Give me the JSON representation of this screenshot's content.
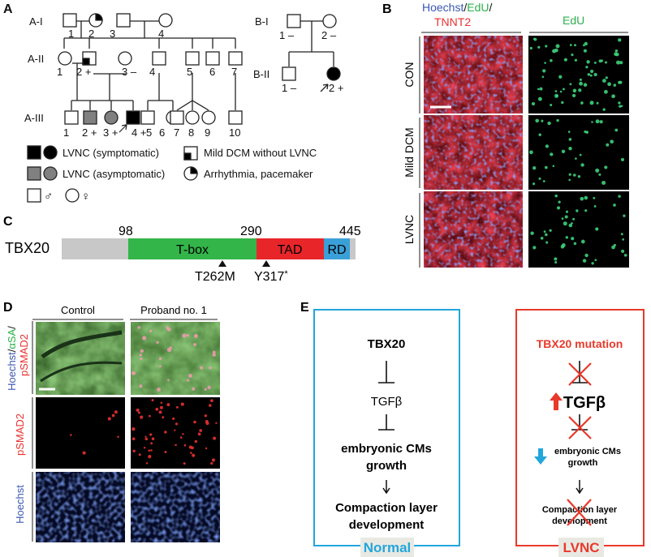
{
  "panels": {
    "a": "A",
    "b": "B",
    "c": "C",
    "d": "D",
    "e": "E"
  },
  "pedigree": {
    "gen_a_i": "A-I",
    "gen_a_ii": "A-II",
    "gen_a_iii": "A-III",
    "gen_b_i": "B-I",
    "gen_b_ii": "B-II",
    "a1": [
      "1",
      "2",
      "3",
      "4"
    ],
    "a2": [
      "1",
      "2 +",
      "3 –",
      "4",
      "5",
      "6",
      "7"
    ],
    "a3": [
      "1",
      "2 +",
      "3 +",
      "4 +",
      "5",
      "6",
      "7",
      "8",
      "9",
      "10"
    ],
    "b1": [
      "1 –",
      "2 –"
    ],
    "b2": [
      "1 –",
      "2 +"
    ]
  },
  "legend": {
    "lvnc_symptomatic": "LVNC (symptomatic)",
    "mild_dcm": "Mild DCM without LVNC",
    "lvnc_asymptomatic": "LVNC (asymptomatic)",
    "arrhythmia": "Arrhythmia, pacemaker",
    "male_symbol": "♂",
    "female_symbol": "♀"
  },
  "panel_b": {
    "header_hoechst": "Hoechst",
    "header_sep1": "/",
    "header_edu": "EdU",
    "header_sep2": "/",
    "header_tnnt2": "TNNT2",
    "header_col2": "EdU",
    "rows": [
      "CON",
      "Mild DCM",
      "LVNC"
    ]
  },
  "panel_c": {
    "protein": "TBX20",
    "pos_98": "98",
    "pos_290": "290",
    "pos_445": "445",
    "tbox": "T-box",
    "tad": "TAD",
    "rd": "RD",
    "mut1": "T262M",
    "mut2": "Y317",
    "mut2_sup": "*"
  },
  "panel_d": {
    "col1": "Control",
    "col2": "Proband no. 1",
    "row1_l1_hoechst": "Hoechst",
    "row1_l1_sep1": "/",
    "row1_l1_asa": "αSA",
    "row1_l1_sep2": "/",
    "row1_l2": "pSMAD2",
    "row2": "pSMAD2",
    "row3": "Hoechst"
  },
  "panel_e": {
    "normal": {
      "tbx20": "TBX20",
      "tgfb": "TGFβ",
      "cms1": "embryonic CMs",
      "cms2": "growth",
      "layer1": "Compaction layer",
      "layer2": "development",
      "label": "Normal"
    },
    "lvnc": {
      "title": "TBX20 mutation",
      "tgfb": "TGFβ",
      "cms1": "embryonic CMs",
      "cms2": "growth",
      "layer1": "Compaction layer",
      "layer2": "development",
      "label": "LVNC"
    }
  },
  "colors": {
    "affected_black": "#000000",
    "asymptomatic_gray": "#808080",
    "tbox_green": "#33b54a",
    "tad_red": "#e8262a",
    "rd_blue": "#3aa0d8",
    "hoechst_blue": "#3a57b3",
    "edu_green": "#2bb14b",
    "tnnt2_red": "#e8312f",
    "normal_box": "#22a6dc",
    "lvnc_box": "#e8392a",
    "label_bg": "#e9e9e3"
  }
}
